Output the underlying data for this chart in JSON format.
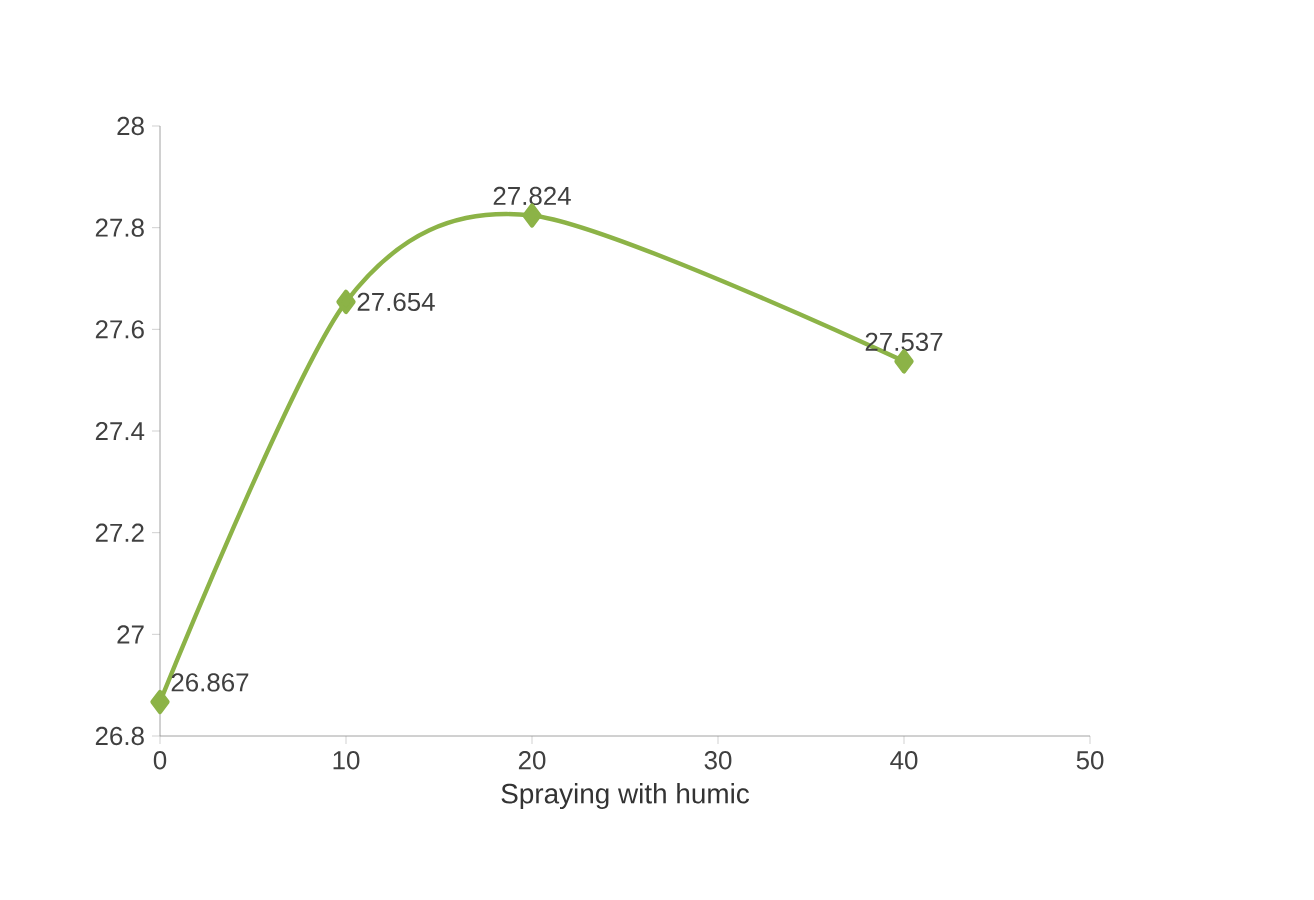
{
  "chart_data": {
    "type": "line",
    "xlabel": "Spraying with humic",
    "x": [
      0,
      10,
      20,
      40
    ],
    "values": [
      26.867,
      27.654,
      27.824,
      27.537
    ],
    "color": "#8cb347",
    "marker": "diamond",
    "data_labels": true,
    "xlim": [
      0,
      50
    ],
    "xticks": [
      0,
      10,
      20,
      30,
      40,
      50
    ],
    "ylim": [
      26.8,
      28
    ],
    "yticks": [
      26.8,
      27,
      27.2,
      27.4,
      27.6,
      27.8,
      28
    ]
  }
}
